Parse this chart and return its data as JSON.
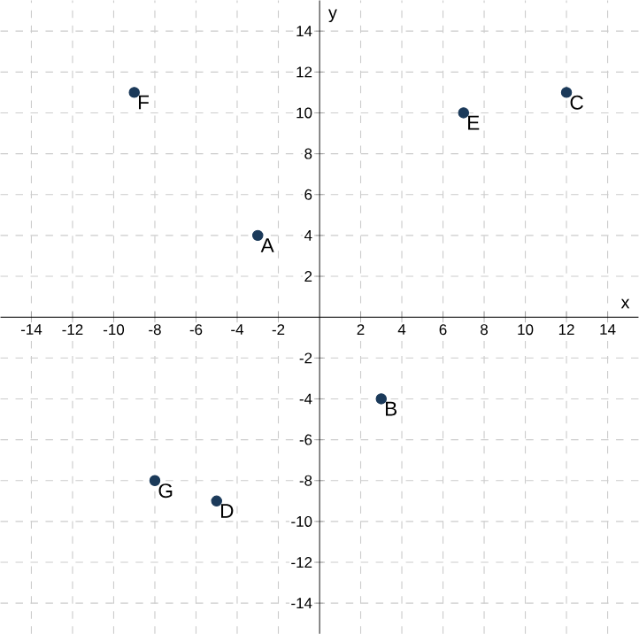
{
  "chart_data": {
    "type": "scatter",
    "xlabel": "x",
    "ylabel": "y",
    "x": [
      -3,
      3,
      12,
      -5,
      7,
      -9,
      -8
    ],
    "values": [
      4,
      -4,
      11,
      -9,
      10,
      11,
      -8
    ],
    "color": "#1b3a5a",
    "marker": "circle",
    "grid": true,
    "xlim": [
      -15.5,
      15.5
    ],
    "ylim": [
      -15.5,
      15.5
    ],
    "xticks": [
      -14,
      -12,
      -10,
      -8,
      -6,
      -4,
      -2,
      2,
      4,
      6,
      8,
      10,
      12,
      14
    ],
    "yticks": [
      -14,
      -12,
      -10,
      -8,
      -6,
      -4,
      -2,
      2,
      4,
      6,
      8,
      10,
      12,
      14
    ],
    "annotations": [
      {
        "text": "A",
        "x": -3,
        "y": 4
      },
      {
        "text": "B",
        "x": 3,
        "y": -4
      },
      {
        "text": "C",
        "x": 12,
        "y": 11
      },
      {
        "text": "D",
        "x": -5,
        "y": -9
      },
      {
        "text": "E",
        "x": 7,
        "y": 10
      },
      {
        "text": "F",
        "x": -9,
        "y": 11
      },
      {
        "text": "G",
        "x": -8,
        "y": -8
      }
    ]
  }
}
